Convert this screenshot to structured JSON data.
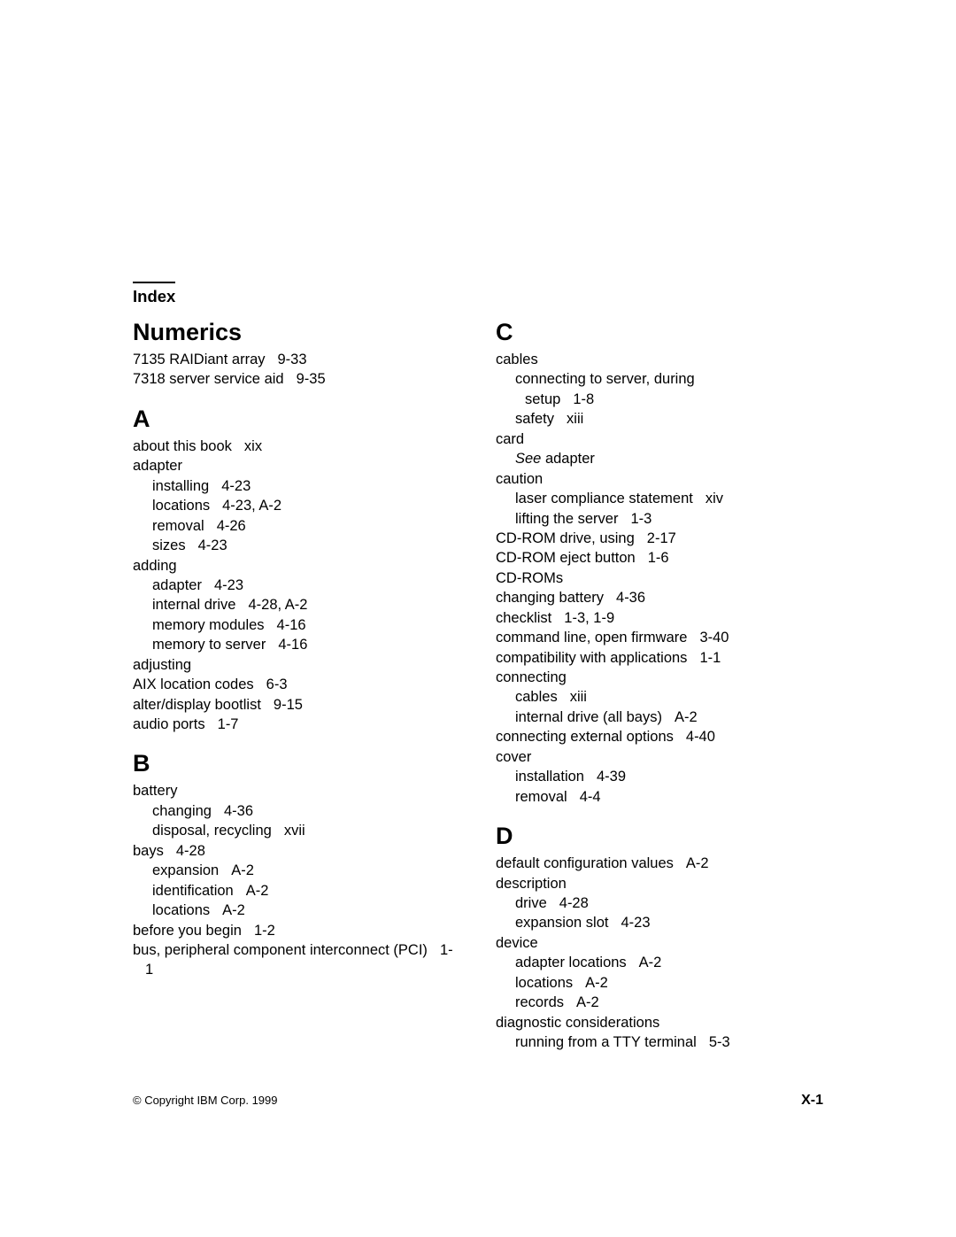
{
  "header": {
    "title": "Index"
  },
  "left": {
    "sections": [
      {
        "heading": "Numerics",
        "entries": [
          {
            "text": "7135 RAIDiant array",
            "ref": "9-33",
            "level": 1
          },
          {
            "text": "7318 server service aid",
            "ref": "9-35",
            "level": 1
          }
        ]
      },
      {
        "heading": "A",
        "entries": [
          {
            "text": "about this book",
            "ref": "xix",
            "level": 1
          },
          {
            "text": "adapter",
            "ref": "",
            "level": 1
          },
          {
            "text": "installing",
            "ref": "4-23",
            "level": 2
          },
          {
            "text": "locations",
            "ref": "4-23, A-2",
            "level": 2
          },
          {
            "text": "removal",
            "ref": "4-26",
            "level": 2
          },
          {
            "text": "sizes",
            "ref": "4-23",
            "level": 2
          },
          {
            "text": "adding",
            "ref": "",
            "level": 1
          },
          {
            "text": "adapter",
            "ref": "4-23",
            "level": 2
          },
          {
            "text": "internal drive",
            "ref": "4-28, A-2",
            "level": 2
          },
          {
            "text": "memory modules",
            "ref": "4-16",
            "level": 2
          },
          {
            "text": "memory to server",
            "ref": "4-16",
            "level": 2
          },
          {
            "text": "adjusting",
            "ref": "",
            "level": 1
          },
          {
            "text": "AIX location codes",
            "ref": "6-3",
            "level": 1
          },
          {
            "text": "alter/display bootlist",
            "ref": "9-15",
            "level": 1
          },
          {
            "text": "audio ports",
            "ref": "1-7",
            "level": 1
          }
        ]
      },
      {
        "heading": "B",
        "entries": [
          {
            "text": "battery",
            "ref": "",
            "level": 1
          },
          {
            "text": "changing",
            "ref": "4-36",
            "level": 2
          },
          {
            "text": "disposal, recycling",
            "ref": "xvii",
            "level": 2
          },
          {
            "text": "bays",
            "ref": "4-28",
            "level": 1
          },
          {
            "text": "expansion",
            "ref": "A-2",
            "level": 2
          },
          {
            "text": "identification",
            "ref": "A-2",
            "level": 2
          },
          {
            "text": "locations",
            "ref": "A-2",
            "level": 2
          },
          {
            "text": "before you begin",
            "ref": "1-2",
            "level": 1
          },
          {
            "text": "bus, peripheral component interconnect (PCI)",
            "ref": "1-1",
            "level": 1
          }
        ]
      }
    ]
  },
  "right": {
    "sections": [
      {
        "heading": "C",
        "entries": [
          {
            "text": "cables",
            "ref": "",
            "level": 1
          },
          {
            "text": "connecting to server, during",
            "ref": "",
            "level": 2
          },
          {
            "text": "setup",
            "ref": "1-8",
            "level": 3
          },
          {
            "text": "safety",
            "ref": "xiii",
            "level": 2
          },
          {
            "text": "card",
            "ref": "",
            "level": 1
          },
          {
            "text": "",
            "ref": "",
            "level": 2,
            "italic": "See",
            "after": " adapter"
          },
          {
            "text": "caution",
            "ref": "",
            "level": 1
          },
          {
            "text": "laser compliance statement",
            "ref": "xiv",
            "level": 2
          },
          {
            "text": "lifting the server",
            "ref": "1-3",
            "level": 2
          },
          {
            "text": "CD-ROM drive, using",
            "ref": "2-17",
            "level": 1
          },
          {
            "text": "CD-ROM eject button",
            "ref": "1-6",
            "level": 1
          },
          {
            "text": "CD-ROMs",
            "ref": "",
            "level": 1
          },
          {
            "text": "changing battery",
            "ref": "4-36",
            "level": 1
          },
          {
            "text": "checklist",
            "ref": "1-3, 1-9",
            "level": 1
          },
          {
            "text": "command line, open firmware",
            "ref": "3-40",
            "level": 1
          },
          {
            "text": "compatibility with applications",
            "ref": "1-1",
            "level": 1
          },
          {
            "text": "connecting",
            "ref": "",
            "level": 1
          },
          {
            "text": "cables",
            "ref": "xiii",
            "level": 2
          },
          {
            "text": "internal drive (all bays)",
            "ref": "A-2",
            "level": 2
          },
          {
            "text": "connecting external options",
            "ref": "4-40",
            "level": 1
          },
          {
            "text": "cover",
            "ref": "",
            "level": 1
          },
          {
            "text": "installation",
            "ref": "4-39",
            "level": 2
          },
          {
            "text": "removal",
            "ref": "4-4",
            "level": 2
          }
        ]
      },
      {
        "heading": "D",
        "entries": [
          {
            "text": "default configuration values",
            "ref": "A-2",
            "level": 1
          },
          {
            "text": "description",
            "ref": "",
            "level": 1
          },
          {
            "text": "drive",
            "ref": "4-28",
            "level": 2
          },
          {
            "text": "expansion slot",
            "ref": "4-23",
            "level": 2
          },
          {
            "text": "device",
            "ref": "",
            "level": 1
          },
          {
            "text": "adapter locations",
            "ref": "A-2",
            "level": 2
          },
          {
            "text": "locations",
            "ref": "A-2",
            "level": 2
          },
          {
            "text": "records",
            "ref": "A-2",
            "level": 2
          },
          {
            "text": "diagnostic considerations",
            "ref": "",
            "level": 1
          },
          {
            "text": "running from a TTY terminal",
            "ref": "5-3",
            "level": 2
          }
        ]
      }
    ]
  },
  "footer": {
    "copyright": "© Copyright IBM Corp. 1999",
    "page": "X-1"
  }
}
